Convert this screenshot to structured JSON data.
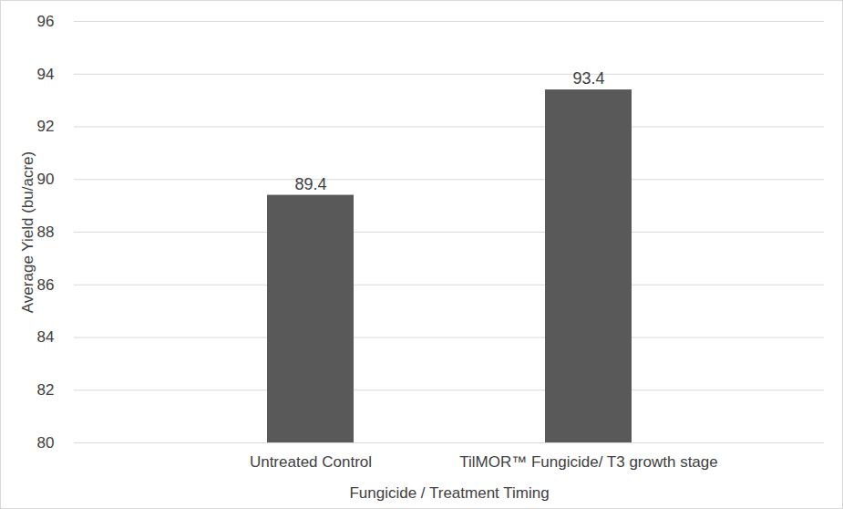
{
  "chart_data": {
    "type": "bar",
    "categories": [
      "Untreated Control",
      "TilMOR™ Fungicide/ T3 growth stage"
    ],
    "values": [
      89.4,
      93.4
    ],
    "color": "#595959",
    "x_label": "Fungicide / Treatment Timing",
    "y_label": "Average Yield (bu/acre)",
    "ylim": [
      80,
      96
    ],
    "yticks": [
      80,
      82,
      84,
      86,
      88,
      90,
      92,
      94,
      96
    ],
    "grid": true,
    "data_labels": true
  }
}
